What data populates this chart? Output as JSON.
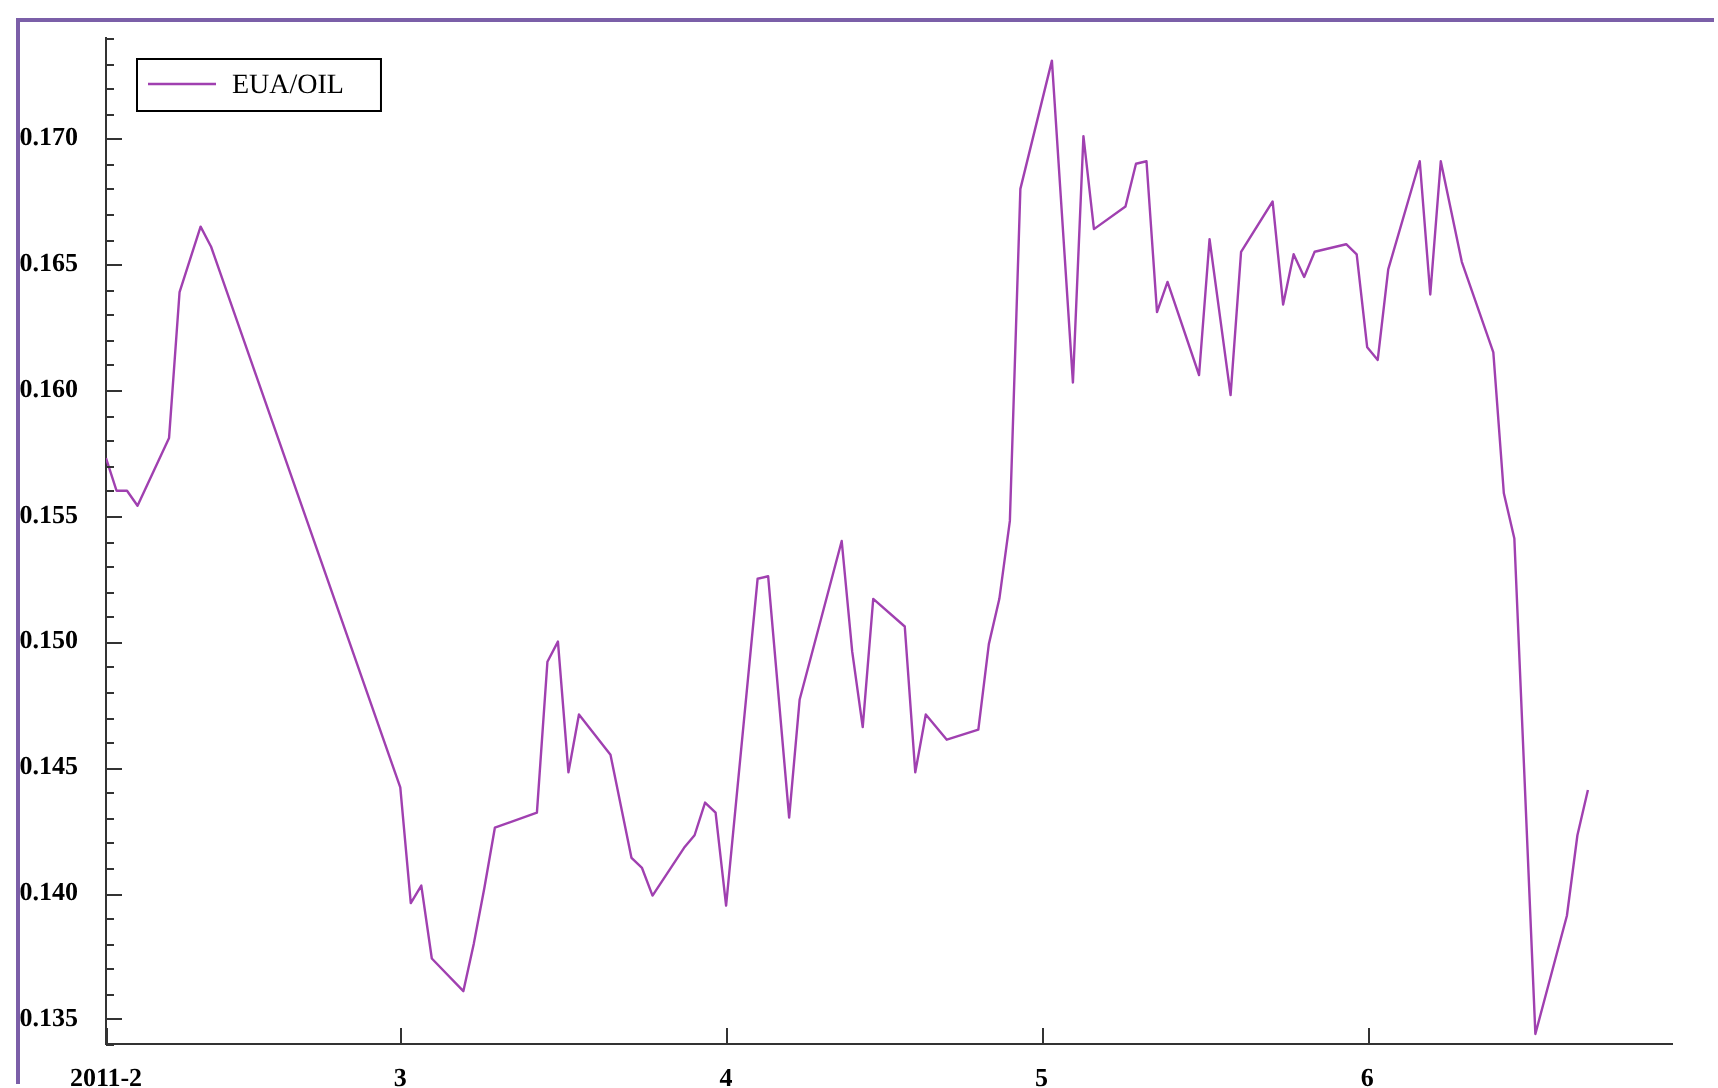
{
  "chart_data": {
    "type": "line",
    "legend": "top left",
    "marker": "none",
    "line_style": "solid",
    "grid": false,
    "xlim": [
      "2011-02-01",
      "2011-06-30"
    ],
    "xticks": [
      {
        "value": "2011-02-01",
        "label": "2011-2"
      },
      {
        "value": "2011-03-01",
        "label": "3"
      },
      {
        "value": "2011-04-01",
        "label": "4"
      },
      {
        "value": "2011-05-01",
        "label": "5"
      },
      {
        "value": "2011-06-01",
        "label": "6"
      }
    ],
    "ylim": [
      0.134,
      0.174
    ],
    "yticks": [
      {
        "value": 0.134,
        "label": null
      },
      {
        "value": 0.135,
        "label": "0.135"
      },
      {
        "value": 0.136,
        "label": null
      },
      {
        "value": 0.137,
        "label": null
      },
      {
        "value": 0.138,
        "label": null
      },
      {
        "value": 0.139,
        "label": null
      },
      {
        "value": 0.14,
        "label": "0.140"
      },
      {
        "value": 0.141,
        "label": null
      },
      {
        "value": 0.142,
        "label": null
      },
      {
        "value": 0.143,
        "label": null
      },
      {
        "value": 0.144,
        "label": null
      },
      {
        "value": 0.145,
        "label": "0.145"
      },
      {
        "value": 0.146,
        "label": null
      },
      {
        "value": 0.147,
        "label": null
      },
      {
        "value": 0.148,
        "label": null
      },
      {
        "value": 0.149,
        "label": null
      },
      {
        "value": 0.15,
        "label": "0.150"
      },
      {
        "value": 0.151,
        "label": null
      },
      {
        "value": 0.152,
        "label": null
      },
      {
        "value": 0.153,
        "label": null
      },
      {
        "value": 0.154,
        "label": null
      },
      {
        "value": 0.155,
        "label": "0.155"
      },
      {
        "value": 0.156,
        "label": null
      },
      {
        "value": 0.157,
        "label": null
      },
      {
        "value": 0.158,
        "label": null
      },
      {
        "value": 0.159,
        "label": null
      },
      {
        "value": 0.16,
        "label": "0.160"
      },
      {
        "value": 0.161,
        "label": null
      },
      {
        "value": 0.162,
        "label": null
      },
      {
        "value": 0.163,
        "label": null
      },
      {
        "value": 0.164,
        "label": null
      },
      {
        "value": 0.165,
        "label": "0.165"
      },
      {
        "value": 0.166,
        "label": null
      },
      {
        "value": 0.167,
        "label": null
      },
      {
        "value": 0.168,
        "label": null
      },
      {
        "value": 0.169,
        "label": null
      },
      {
        "value": 0.17,
        "label": "0.170"
      },
      {
        "value": 0.171,
        "label": null
      },
      {
        "value": 0.172,
        "label": null
      },
      {
        "value": 0.173,
        "label": null
      },
      {
        "value": 0.174,
        "label": null
      }
    ],
    "series": [
      {
        "name": "EUA/OIL",
        "color": "#a040b0",
        "x": [
          "2011-02-01",
          "2011-02-02",
          "2011-02-03",
          "2011-02-04",
          "2011-02-07",
          "2011-02-08",
          "2011-02-10",
          "2011-02-11",
          "2011-03-01",
          "2011-03-02",
          "2011-03-03",
          "2011-03-04",
          "2011-03-07",
          "2011-03-08",
          "2011-03-09",
          "2011-03-10",
          "2011-03-14",
          "2011-03-15",
          "2011-03-16",
          "2011-03-17",
          "2011-03-18",
          "2011-03-21",
          "2011-03-23",
          "2011-03-24",
          "2011-03-25",
          "2011-03-28",
          "2011-03-29",
          "2011-03-30",
          "2011-03-31",
          "2011-04-01",
          "2011-04-04",
          "2011-04-05",
          "2011-04-07",
          "2011-04-08",
          "2011-04-12",
          "2011-04-13",
          "2011-04-14",
          "2011-04-15",
          "2011-04-18",
          "2011-04-19",
          "2011-04-20",
          "2011-04-22",
          "2011-04-25",
          "2011-04-26",
          "2011-04-27",
          "2011-04-28",
          "2011-04-29",
          "2011-05-02",
          "2011-05-04",
          "2011-05-05",
          "2011-05-06",
          "2011-05-09",
          "2011-05-10",
          "2011-05-11",
          "2011-05-12",
          "2011-05-13",
          "2011-05-16",
          "2011-05-17",
          "2011-05-19",
          "2011-05-20",
          "2011-05-23",
          "2011-05-24",
          "2011-05-25",
          "2011-05-26",
          "2011-05-27",
          "2011-05-30",
          "2011-05-31",
          "2011-06-01",
          "2011-06-02",
          "2011-06-03",
          "2011-06-06",
          "2011-06-07",
          "2011-06-08",
          "2011-06-10",
          "2011-06-13",
          "2011-06-14",
          "2011-06-15",
          "2011-06-17",
          "2011-06-20",
          "2011-06-21",
          "2011-06-22"
        ],
        "values": [
          0.1573,
          0.156,
          0.156,
          0.1554,
          0.1581,
          0.1639,
          0.1665,
          0.1657,
          0.1442,
          0.1396,
          0.1403,
          0.1374,
          0.1361,
          0.138,
          0.1402,
          0.1426,
          0.1432,
          0.1492,
          0.15,
          0.1448,
          0.1471,
          0.1455,
          0.1414,
          0.141,
          0.1399,
          0.1418,
          0.1423,
          0.1436,
          0.1432,
          0.1395,
          0.1525,
          0.1526,
          0.143,
          0.1477,
          0.154,
          0.1496,
          0.1466,
          0.1517,
          0.1506,
          0.1448,
          0.1471,
          0.1461,
          0.1465,
          0.1499,
          0.1517,
          0.1548,
          0.168,
          0.1731,
          0.1603,
          0.1701,
          0.1664,
          0.1673,
          0.169,
          0.1691,
          0.1631,
          0.1643,
          0.1606,
          0.166,
          0.1598,
          0.1655,
          0.1675,
          0.1634,
          0.1654,
          0.1645,
          0.1655,
          0.1658,
          0.1654,
          0.1617,
          0.1612,
          0.1648,
          0.1691,
          0.1638,
          0.1691,
          0.1651,
          0.1615,
          0.1559,
          0.1541,
          0.1344,
          0.1391,
          0.1423,
          0.1441
        ]
      }
    ]
  }
}
